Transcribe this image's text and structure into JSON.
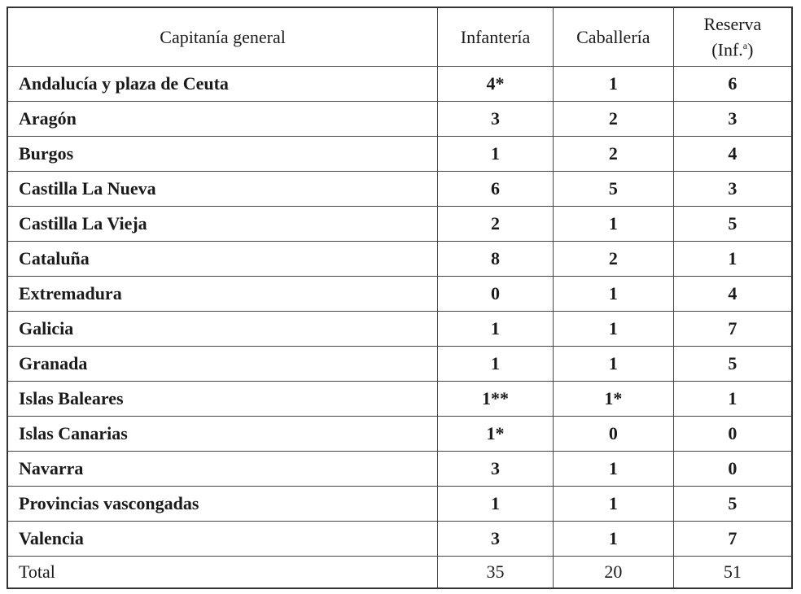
{
  "header": {
    "col1": "Capitanía general",
    "col2": "Infantería",
    "col3": "Caballería",
    "col4_line1": "Reserva",
    "col4_line2_open": "(Inf.",
    "col4_sup": "a",
    "col4_line2_close": ")"
  },
  "rows": [
    {
      "name": "Andalucía y plaza de Ceuta",
      "inf": "4*",
      "cab": "1",
      "res": "6"
    },
    {
      "name": "Aragón",
      "inf": "3",
      "cab": "2",
      "res": "3"
    },
    {
      "name": "Burgos",
      "inf": "1",
      "cab": "2",
      "res": "4"
    },
    {
      "name": "Castilla La Nueva",
      "inf": "6",
      "cab": "5",
      "res": "3"
    },
    {
      "name": "Castilla La Vieja",
      "inf": "2",
      "cab": "1",
      "res": "5"
    },
    {
      "name": "Cataluña",
      "inf": "8",
      "cab": "2",
      "res": "1"
    },
    {
      "name": "Extremadura",
      "inf": "0",
      "cab": "1",
      "res": "4"
    },
    {
      "name": "Galicia",
      "inf": "1",
      "cab": "1",
      "res": "7"
    },
    {
      "name": "Granada",
      "inf": "1",
      "cab": "1",
      "res": "5"
    },
    {
      "name": "Islas Baleares",
      "inf": "1**",
      "cab": "1*",
      "res": "1"
    },
    {
      "name": "Islas Canarias",
      "inf": "1*",
      "cab": "0",
      "res": "0"
    },
    {
      "name": "Navarra",
      "inf": "3",
      "cab": "1",
      "res": "0"
    },
    {
      "name": "Provincias vascongadas",
      "inf": "1",
      "cab": "1",
      "res": "5"
    },
    {
      "name": "Valencia",
      "inf": "3",
      "cab": "1",
      "res": "7"
    }
  ],
  "total": {
    "name": "Total",
    "inf": "35",
    "cab": "20",
    "res": "51"
  }
}
